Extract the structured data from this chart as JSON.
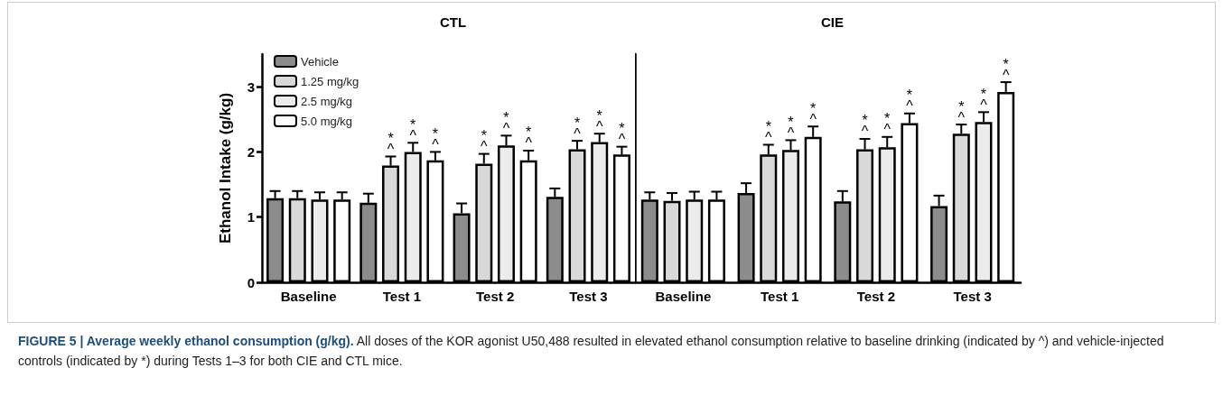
{
  "chart_data": [
    {
      "type": "bar",
      "title": "CTL",
      "ylabel": "Ethanol Intake (g/kg)",
      "categories": [
        "Baseline",
        "Test 1",
        "Test 2",
        "Test 3"
      ],
      "ylim": [
        0,
        3.5
      ],
      "yticks": [
        0,
        1,
        2,
        3
      ],
      "legend": "top left",
      "grid": false,
      "series": [
        {
          "name": "Vehicle",
          "color": "#8c8c8c",
          "values": [
            1.29,
            1.22,
            1.06,
            1.31
          ],
          "errors": [
            0.11,
            0.14,
            0.15,
            0.13
          ],
          "value_labels": [
            null,
            null,
            null,
            null
          ]
        },
        {
          "name": "1.25 mg/kg",
          "color": "#d9d9d9",
          "values": [
            1.29,
            1.79,
            1.82,
            2.04
          ],
          "errors": [
            0.11,
            0.14,
            0.15,
            0.13
          ],
          "value_labels": [
            null,
            "*\n^",
            "*\n^",
            "*\n^"
          ]
        },
        {
          "name": "2.5 mg/kg",
          "color": "#ececec",
          "values": [
            1.27,
            2.0,
            2.1,
            2.15
          ],
          "errors": [
            0.11,
            0.14,
            0.15,
            0.13
          ],
          "value_labels": [
            null,
            "*\n^",
            "*\n^",
            "*\n^"
          ]
        },
        {
          "name": "5.0 mg/kg",
          "color": "#ffffff",
          "values": [
            1.27,
            1.87,
            1.87,
            1.96
          ],
          "errors": [
            0.11,
            0.13,
            0.15,
            0.12
          ],
          "value_labels": [
            null,
            "*\n^",
            "*\n^",
            "*\n^"
          ]
        }
      ],
      "annotations": [
        "FIGURE 5 | Average weekly ethanol consumption (g/kg).",
        "All doses of the KOR agonist U50,488 resulted in elevated ethanol consumption relative to baseline drinking (indicated by ^) and vehicle-injected controls (indicated by *) during Tests 1–3 for both CIE and CTL mice."
      ]
    },
    {
      "type": "bar",
      "title": "CIE",
      "categories": [
        "Baseline",
        "Test 1",
        "Test 2",
        "Test 3"
      ],
      "ylim": [
        0,
        3.5
      ],
      "yticks": [
        0,
        1,
        2,
        3
      ],
      "tick_labels": "x",
      "grid": false,
      "series": [
        {
          "color": "#8c8c8c",
          "values": [
            1.27,
            1.37,
            1.24,
            1.17
          ],
          "errors": [
            0.11,
            0.15,
            0.16,
            0.16
          ],
          "value_labels": [
            null,
            null,
            null,
            null
          ]
        },
        {
          "color": "#d9d9d9",
          "values": [
            1.25,
            1.96,
            2.04,
            2.28
          ],
          "errors": [
            0.12,
            0.15,
            0.16,
            0.14
          ],
          "value_labels": [
            null,
            "*\n^",
            "*\n^",
            "*\n^"
          ]
        },
        {
          "color": "#ececec",
          "values": [
            1.27,
            2.03,
            2.07,
            2.46
          ],
          "errors": [
            0.12,
            0.15,
            0.16,
            0.15
          ],
          "value_labels": [
            null,
            "*\n^",
            "*\n^",
            "*\n^"
          ]
        },
        {
          "color": "#ffffff",
          "values": [
            1.27,
            2.23,
            2.44,
            2.92
          ],
          "errors": [
            0.12,
            0.16,
            0.15,
            0.15
          ],
          "value_labels": [
            null,
            "*\n^",
            "*\n^",
            "*\n^"
          ]
        }
      ]
    }
  ]
}
